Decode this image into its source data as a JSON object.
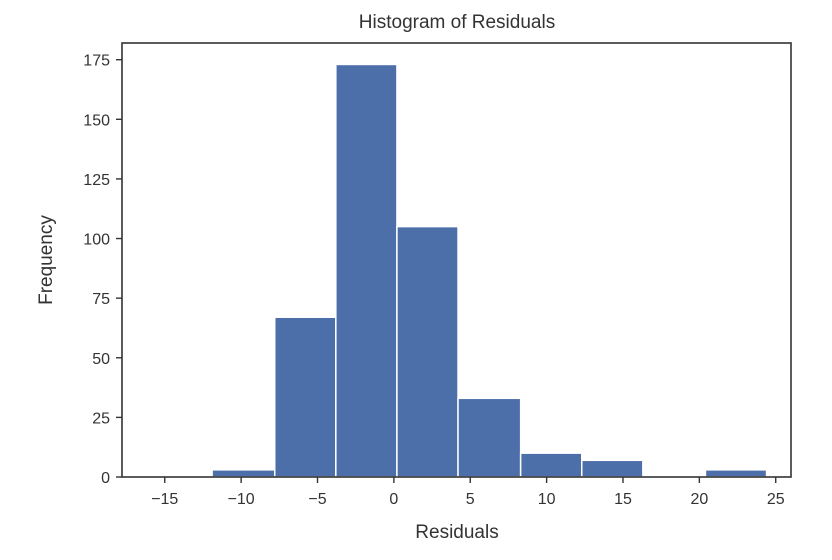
{
  "chart_data": {
    "type": "bar",
    "title": "Histogram of Residuals",
    "xlabel": "Residuals",
    "ylabel": "Frequency",
    "xlim": [
      -17.8,
      26.0
    ],
    "ylim": [
      0,
      182
    ],
    "x_ticks": [
      "−15",
      "−10",
      "−5",
      "0",
      "5",
      "10",
      "15",
      "20",
      "25"
    ],
    "x_tick_values": [
      -15,
      -10,
      -5,
      0,
      5,
      10,
      15,
      20,
      25
    ],
    "y_ticks": [
      "0",
      "25",
      "50",
      "75",
      "100",
      "125",
      "150",
      "175"
    ],
    "y_tick_values": [
      0,
      25,
      50,
      75,
      100,
      125,
      150,
      175
    ],
    "bin_edges": [
      -15.9,
      -11.9,
      -7.8,
      -3.8,
      0.2,
      4.2,
      8.3,
      12.3,
      16.3,
      20.4,
      24.4
    ],
    "values": [
      0,
      3,
      67,
      173,
      105,
      33,
      10,
      7,
      0,
      3
    ],
    "grid": false,
    "colors": {
      "bar": "#4c6ea9",
      "bar_edge": "#ffffff",
      "axes": "#333333",
      "background": "#ffffff"
    }
  }
}
